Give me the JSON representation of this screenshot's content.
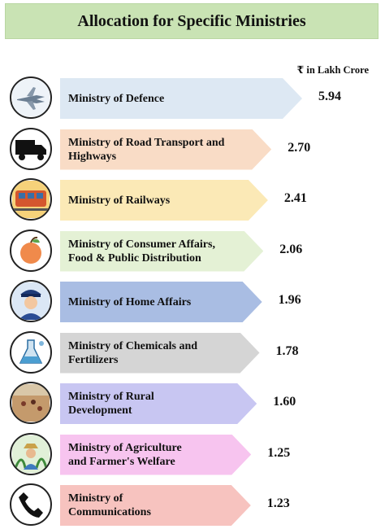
{
  "title": "Allocation for Specific Ministries",
  "unit_label": "₹ in Lakh Crore",
  "chart_data": {
    "type": "bar",
    "title": "Allocation for Specific Ministries",
    "unit": "₹ in Lakh Crore",
    "categories": [
      "Ministry of Defence",
      "Ministry of Road Transport and Highways",
      "Ministry of Railways",
      "Ministry of Consumer Affairs, Food & Public Distribution",
      "Ministry of Home Affairs",
      "Ministry of Chemicals and Fertilizers",
      "Ministry of Rural Development",
      "Ministry of Agriculture and Farmer's Welfare",
      "Ministry of Communications"
    ],
    "values": [
      5.94,
      2.7,
      2.41,
      2.06,
      1.96,
      1.78,
      1.6,
      1.25,
      1.23
    ],
    "value_labels": [
      "5.94",
      "2.70",
      "2.41",
      "2.06",
      "1.96",
      "1.78",
      "1.60",
      "1.25",
      "1.23"
    ],
    "label_lines": [
      [
        "Ministry of Defence"
      ],
      [
        "Ministry of Road Transport and",
        "Highways"
      ],
      [
        "Ministry of Railways"
      ],
      [
        "Ministry of Consumer Affairs,",
        "Food & Public Distribution"
      ],
      [
        "Ministry of Home Affairs"
      ],
      [
        "Ministry of Chemicals and",
        "Fertilizers"
      ],
      [
        "Ministry of Rural",
        "Development"
      ],
      [
        "Ministry of Agriculture",
        "and Farmer's Welfare"
      ],
      [
        "Ministry of",
        "Communications"
      ]
    ],
    "colors": [
      "#dde8f3",
      "#f9dcc6",
      "#fbe9b6",
      "#e4f1d5",
      "#a9bde3",
      "#d5d5d5",
      "#c8c6f2",
      "#f7c4ef",
      "#f7c3bf"
    ],
    "icons": [
      "fighter-jet-icon",
      "truck-icon",
      "train-icon",
      "apple-icon",
      "police-officer-icon",
      "chemistry-flask-icon",
      "rural-village-icon",
      "farmer-icon",
      "telephone-handset-icon"
    ]
  }
}
